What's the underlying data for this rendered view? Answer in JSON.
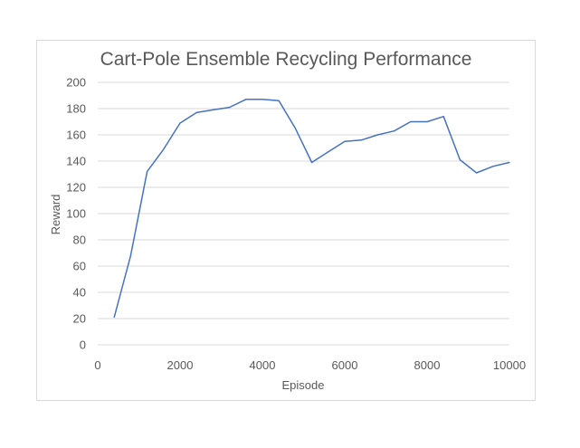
{
  "chart_data": {
    "type": "line",
    "title": "Cart-Pole Ensemble Recycling Performance",
    "xlabel": "Episode",
    "ylabel": "Reward",
    "xlim": [
      0,
      10000
    ],
    "ylim": [
      0,
      200
    ],
    "xticks": [
      0,
      2000,
      4000,
      6000,
      8000,
      10000
    ],
    "yticks": [
      0,
      20,
      40,
      60,
      80,
      100,
      120,
      140,
      160,
      180,
      200
    ],
    "grid": true,
    "legend": "none",
    "series": [
      {
        "color": "#4472c4",
        "x": [
          400,
          800,
          1200,
          1600,
          2000,
          2400,
          2800,
          3200,
          3600,
          4000,
          4400,
          4800,
          5200,
          5600,
          6000,
          6400,
          6800,
          7200,
          7600,
          8000,
          8400,
          8800,
          9200,
          9600,
          10000
        ],
        "y": [
          21,
          68,
          132,
          149,
          169,
          177,
          179,
          181,
          187,
          187,
          186,
          165,
          139,
          147,
          155,
          156,
          160,
          163,
          170,
          170,
          174,
          141,
          131,
          136,
          139
        ]
      }
    ]
  }
}
